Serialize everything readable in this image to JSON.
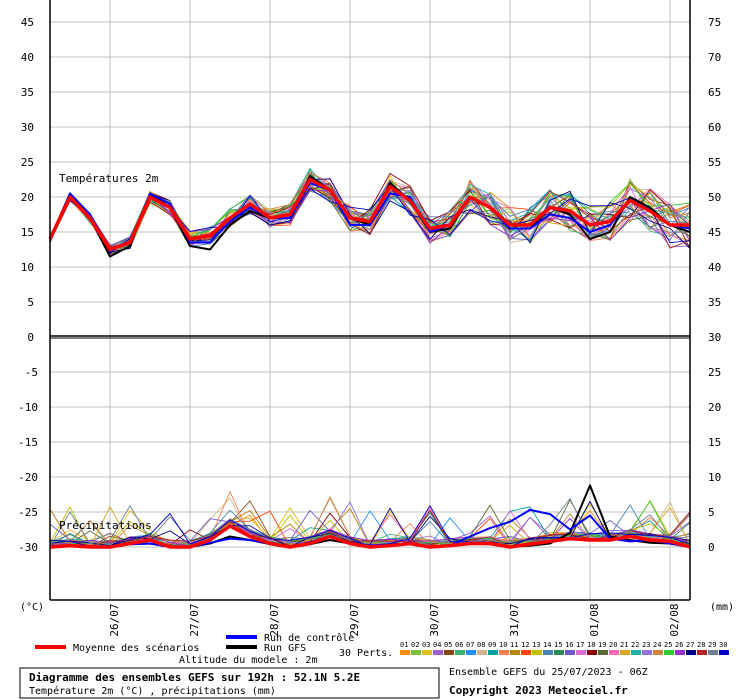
{
  "chart_data": {
    "type": "line",
    "subtitle_temp": "Températures 2m",
    "subtitle_precip": "Précipitations",
    "left_unit": "(°C)",
    "right_unit": "(mm)",
    "x_labels": [
      "26/07",
      "27/07",
      "28/07",
      "29/07",
      "30/07",
      "31/07",
      "01/08",
      "02/08"
    ],
    "x_step_hours": 6,
    "temp_axis": {
      "left_ticks": [
        "45",
        "40",
        "35",
        "30",
        "25",
        "20",
        "15",
        "10",
        "5",
        "0"
      ],
      "left_values": [
        45,
        40,
        35,
        30,
        25,
        20,
        15,
        10,
        5,
        0
      ],
      "right_ticks": [
        "75",
        "70",
        "65",
        "60",
        "55",
        "50",
        "45",
        "40",
        "35",
        "30"
      ],
      "ylim": [
        0,
        47
      ]
    },
    "precip_axis": {
      "left_ticks": [
        "-5",
        "-10",
        "-15",
        "-20",
        "-25",
        "-30"
      ],
      "left_values": [
        -5,
        -10,
        -15,
        -20,
        -25,
        -30
      ],
      "right_ticks": [
        "25",
        "20",
        "15",
        "10",
        "5",
        "0"
      ],
      "ylim": [
        -35,
        0
      ]
    },
    "temp_mean": [
      14,
      20,
      17,
      12.5,
      13.5,
      20,
      18.5,
      14,
      14.5,
      17,
      19,
      17,
      17.5,
      22.5,
      21,
      17,
      16.5,
      21.5,
      19.5,
      15.5,
      16,
      20,
      18.5,
      16,
      16,
      18.5,
      18,
      16,
      16.5,
      19.5,
      18,
      16,
      16
    ],
    "temp_gfs": [
      14,
      20.5,
      17,
      11.5,
      13,
      20.5,
      18.5,
      13,
      12.5,
      16,
      18,
      17,
      17,
      23,
      21,
      17,
      16,
      22,
      19.5,
      15,
      15.5,
      20,
      18.5,
      15.5,
      15.5,
      18.5,
      17.5,
      14,
      15,
      20,
      18.5,
      16,
      15
    ],
    "temp_control": [
      14,
      20.5,
      17.5,
      12.5,
      13.5,
      20.5,
      19,
      13.5,
      13.5,
      16.5,
      18.5,
      17,
      17,
      22,
      21,
      16,
      16,
      20.5,
      20,
      15,
      16,
      20,
      18.5,
      15.5,
      15.5,
      17.5,
      17,
      15,
      16,
      19.5,
      18,
      16,
      15.5
    ],
    "precip_mean": [
      -30,
      -29.8,
      -30,
      -30,
      -29.5,
      -29,
      -30,
      -30,
      -29,
      -27,
      -28.5,
      -29.5,
      -30,
      -29.5,
      -28.5,
      -29.5,
      -30,
      -29.8,
      -29.5,
      -30,
      -29.8,
      -29.5,
      -29.5,
      -30,
      -29.6,
      -29.2,
      -28.8,
      -29,
      -29,
      -28.5,
      -29,
      -29.2,
      -30
    ],
    "precip_gfs": [
      -30,
      -29.8,
      -30,
      -30,
      -29.6,
      -29.5,
      -30,
      -30,
      -29.5,
      -28.5,
      -29,
      -29.6,
      -30,
      -29.6,
      -29,
      -29.5,
      -30,
      -29.8,
      -29.6,
      -30,
      -29.8,
      -29.5,
      -29.6,
      -30,
      -29.8,
      -29.5,
      -28,
      -21.2,
      -28.5,
      -29,
      -29.4,
      -29.5,
      -30
    ],
    "precip_control": [
      -30,
      -29.8,
      -30,
      -30,
      -29.6,
      -29.5,
      -30,
      -30,
      -29.4,
      -28.8,
      -29,
      -29.5,
      -30,
      -29.3,
      -28.6,
      -29.5,
      -29.8,
      -29.6,
      -29.5,
      -30,
      -29.8,
      -28.5,
      -27.3,
      -26.4,
      -24.7,
      -25.3,
      -27.5,
      -25.5,
      -28.8,
      -29.2,
      -29,
      -29.5,
      -30
    ],
    "legend": {
      "mean": "Moyenne des scénarios",
      "control": "Run de contrôle",
      "gfs": "Run GFS",
      "perts": "30 Perts.",
      "altitude": "Altitude du modele : 2m"
    },
    "pert_labels": [
      "01",
      "02",
      "03",
      "04",
      "05",
      "06",
      "07",
      "08",
      "09",
      "10",
      "11",
      "12",
      "13",
      "14",
      "15",
      "16",
      "17",
      "18",
      "19",
      "20",
      "21",
      "22",
      "23",
      "24",
      "25",
      "26",
      "27",
      "28",
      "29",
      "30"
    ],
    "pert_colors": [
      "#ff8c00",
      "#7fbf3f",
      "#e0c020",
      "#a05cd0",
      "#8b4513",
      "#3cb371",
      "#1e90ff",
      "#d2b48c",
      "#00a0a0",
      "#ff7f50",
      "#b8860b",
      "#ff4500",
      "#c0c000",
      "#4682b4",
      "#2e8b57",
      "#6a5acd",
      "#da70d6",
      "#8b0000",
      "#556b2f",
      "#ff69b4",
      "#daa520",
      "#20b2aa",
      "#9370db",
      "#cd853f",
      "#32cd32",
      "#9932cc",
      "#00008b",
      "#b22222",
      "#708090",
      "#0000cd"
    ],
    "colors": {
      "mean": "#ff0000",
      "control": "#0000ff",
      "gfs": "#000000",
      "grid": "#c0c0c0"
    }
  },
  "footer": {
    "title": "Diagramme des ensembles GEFS sur 192h : 52.1N 5.2E",
    "subtitle": "Température 2m (°C) , précipitations (mm)",
    "run": "Ensemble GEFS du 25/07/2023 - 06Z",
    "copyright": "Copyright 2023 Meteociel.fr"
  }
}
